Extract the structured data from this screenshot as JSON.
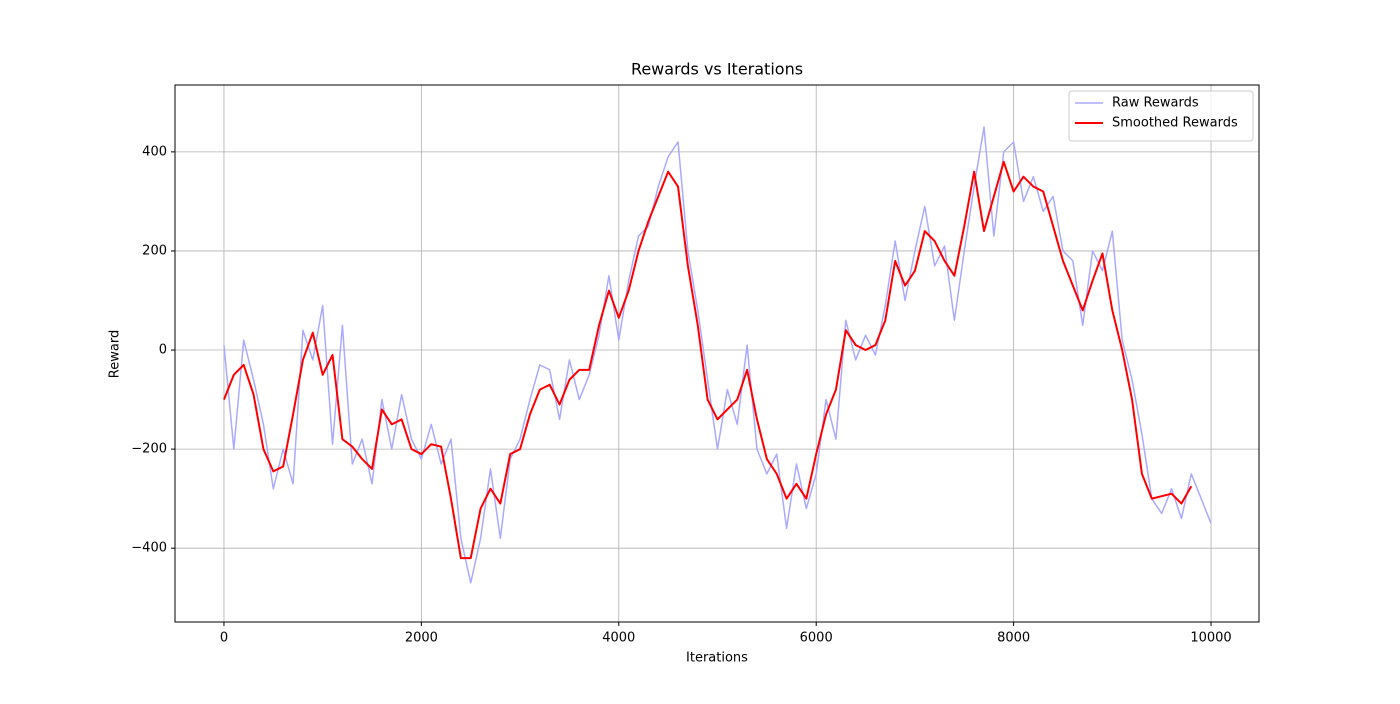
{
  "chart_data": {
    "type": "line",
    "title": "Rewards vs Iterations",
    "x_label": "Iterations",
    "y_label": "Reward",
    "x": [
      0,
      100,
      200,
      300,
      400,
      500,
      600,
      700,
      800,
      900,
      1000,
      1100,
      1200,
      1300,
      1400,
      1500,
      1600,
      1700,
      1800,
      1900,
      2000,
      2100,
      2200,
      2300,
      2400,
      2500,
      2600,
      2700,
      2800,
      2900,
      3000,
      3100,
      3200,
      3300,
      3400,
      3500,
      3600,
      3700,
      3800,
      3900,
      4000,
      4100,
      4200,
      4300,
      4400,
      4500,
      4600,
      4700,
      4800,
      4900,
      5000,
      5100,
      5200,
      5300,
      5400,
      5500,
      5600,
      5700,
      5800,
      5900,
      6000,
      6100,
      6200,
      6300,
      6400,
      6500,
      6600,
      6700,
      6800,
      6900,
      7000,
      7100,
      7200,
      7300,
      7400,
      7500,
      7600,
      7700,
      7800,
      7900,
      8000,
      8100,
      8200,
      8300,
      8400,
      8500,
      8600,
      8700,
      8800,
      8900,
      9000,
      9100,
      9200,
      9300,
      9400,
      9500,
      9600,
      9700,
      9800,
      9900,
      10000
    ],
    "series": [
      {
        "name": "Raw Rewards",
        "color": "#aaaaff",
        "width": 1.5,
        "values": [
          10,
          -200,
          20,
          -60,
          -150,
          -280,
          -200,
          -270,
          40,
          -20,
          90,
          -190,
          50,
          -230,
          -180,
          -270,
          -100,
          -200,
          -90,
          -180,
          -220,
          -150,
          -230,
          -180,
          -380,
          -470,
          -380,
          -240,
          -380,
          -220,
          -180,
          -100,
          -30,
          -40,
          -140,
          -20,
          -100,
          -50,
          30,
          150,
          20,
          140,
          230,
          250,
          330,
          390,
          420,
          200,
          80,
          -60,
          -200,
          -80,
          -150,
          10,
          -200,
          -250,
          -210,
          -360,
          -230,
          -320,
          -250,
          -100,
          -180,
          60,
          -20,
          30,
          -10,
          90,
          220,
          100,
          200,
          290,
          170,
          210,
          60,
          200,
          330,
          450,
          230,
          400,
          420,
          300,
          350,
          280,
          310,
          200,
          180,
          50,
          200,
          160,
          240,
          20,
          -60,
          -170,
          -300,
          -330,
          -280,
          -340,
          -250,
          -300,
          -350
        ]
      },
      {
        "name": "Smoothed Rewards",
        "color": "#ff0000",
        "width": 2,
        "values": [
          -100,
          -50,
          -30,
          -90,
          -200,
          -245,
          -235,
          -130,
          -20,
          35,
          -50,
          -10,
          -180,
          -195,
          -220,
          -240,
          -120,
          -150,
          -140,
          -200,
          -210,
          -190,
          -195,
          -300,
          -420,
          -420,
          -320,
          -280,
          -310,
          -210,
          -200,
          -130,
          -80,
          -70,
          -110,
          -60,
          -40,
          -40,
          50,
          120,
          65,
          120,
          200,
          260,
          310,
          360,
          330,
          170,
          50,
          -100,
          -140,
          -120,
          -100,
          -40,
          -140,
          -220,
          -250,
          -300,
          -270,
          -300,
          -210,
          -130,
          -80,
          40,
          10,
          0,
          10,
          60,
          180,
          130,
          160,
          240,
          220,
          180,
          150,
          250,
          360,
          240,
          310,
          380,
          320,
          350,
          330,
          320,
          250,
          180,
          130,
          80,
          140,
          195,
          80,
          0,
          -100,
          -250,
          -300,
          -295,
          -290,
          -310,
          -275,
          null,
          null
        ]
      }
    ],
    "xlim": [
      -496,
      10486
    ],
    "ylim": [
      -549,
      535
    ],
    "xticks": [
      0,
      2000,
      4000,
      6000,
      8000,
      10000
    ],
    "yticks": [
      {
        "value": -400,
        "label": "−400"
      },
      {
        "value": -200,
        "label": "−200"
      },
      0,
      200,
      400
    ],
    "grid": true,
    "legend": "upper right"
  }
}
